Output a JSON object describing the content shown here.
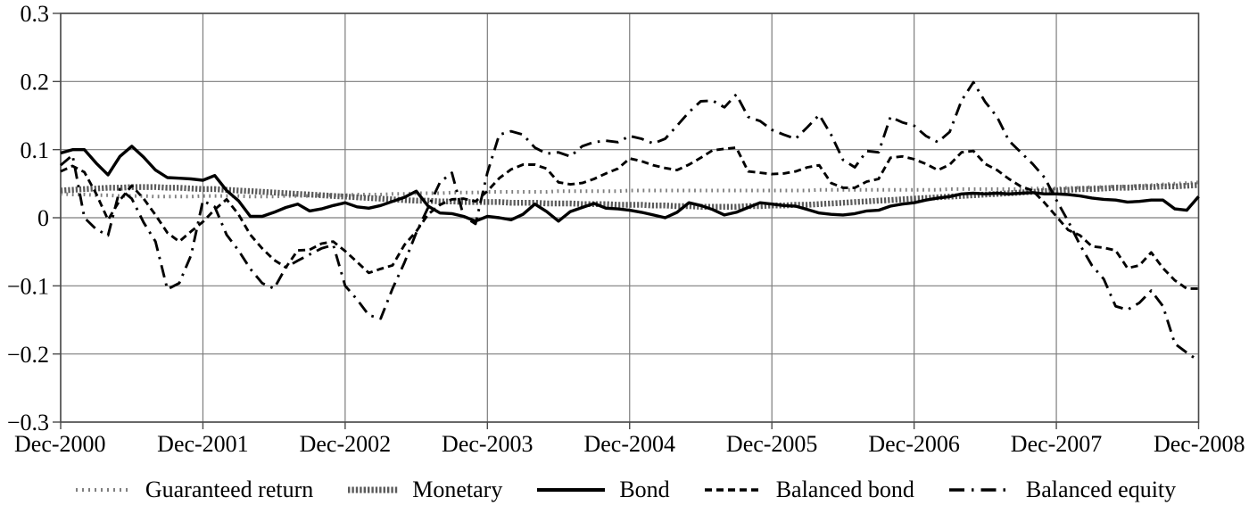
{
  "figure": {
    "background": "#ffffff",
    "text_color": "#000000",
    "gridline_color": "#7d7d7d"
  },
  "chart_data": {
    "type": "line",
    "title": "",
    "xlabel": "",
    "ylabel": "",
    "x_unit": "month",
    "x_range_labels": [
      "Dec-2000",
      "Dec-2008"
    ],
    "x_tick_labels": [
      "Dec-2000",
      "Dec-2001",
      "Dec-2002",
      "Dec-2003",
      "Dec-2004",
      "Dec-2005",
      "Dec-2006",
      "Dec-2007",
      "Dec-2008"
    ],
    "y_tick_labels": [
      "0.3",
      "0.2",
      "0.1",
      "0",
      "−0.1",
      "−0.2",
      "−0.3"
    ],
    "yticks": [
      0.3,
      0.2,
      0.1,
      0,
      -0.1,
      -0.2,
      -0.3
    ],
    "ylim": [
      -0.3,
      0.3
    ],
    "points_per_series": 97,
    "grid": "both",
    "legend_position": "bottom",
    "series": [
      {
        "id": "guaranteed",
        "name": "Guaranteed return",
        "color": "#7f7f7f",
        "style": "fine-dotted",
        "values": [
          0.035,
          0.034,
          0.034,
          0.033,
          0.033,
          0.032,
          0.032,
          0.032,
          0.031,
          0.031,
          0.031,
          0.031,
          0.032,
          0.032,
          0.032,
          0.032,
          0.031,
          0.031,
          0.031,
          0.032,
          0.032,
          0.032,
          0.033,
          0.033,
          0.033,
          0.034,
          0.034,
          0.034,
          0.035,
          0.035,
          0.036,
          0.036,
          0.036,
          0.037,
          0.037,
          0.037,
          0.038,
          0.038,
          0.038,
          0.038,
          0.038,
          0.038,
          0.039,
          0.039,
          0.039,
          0.039,
          0.039,
          0.039,
          0.04,
          0.04,
          0.04,
          0.04,
          0.04,
          0.04,
          0.04,
          0.04,
          0.04,
          0.04,
          0.04,
          0.04,
          0.04,
          0.04,
          0.04,
          0.04,
          0.041,
          0.041,
          0.041,
          0.041,
          0.041,
          0.041,
          0.041,
          0.041,
          0.041,
          0.041,
          0.041,
          0.042,
          0.042,
          0.042,
          0.042,
          0.042,
          0.042,
          0.042,
          0.043,
          0.043,
          0.043,
          0.044,
          0.044,
          0.045,
          0.045,
          0.046,
          0.046,
          0.047,
          0.048,
          0.049,
          0.05,
          0.051,
          0.052
        ]
      },
      {
        "id": "monetary",
        "name": "Monetary",
        "color": "#5a5a5a",
        "style": "dense-dotted",
        "values": [
          0.04,
          0.041,
          0.042,
          0.043,
          0.044,
          0.044,
          0.045,
          0.045,
          0.045,
          0.044,
          0.044,
          0.043,
          0.042,
          0.042,
          0.041,
          0.04,
          0.039,
          0.038,
          0.037,
          0.036,
          0.035,
          0.034,
          0.033,
          0.032,
          0.031,
          0.03,
          0.029,
          0.028,
          0.027,
          0.026,
          0.025,
          0.025,
          0.024,
          0.024,
          0.023,
          0.023,
          0.023,
          0.023,
          0.022,
          0.022,
          0.022,
          0.021,
          0.021,
          0.021,
          0.02,
          0.02,
          0.02,
          0.019,
          0.019,
          0.019,
          0.018,
          0.018,
          0.017,
          0.017,
          0.016,
          0.016,
          0.016,
          0.016,
          0.017,
          0.017,
          0.018,
          0.018,
          0.019,
          0.019,
          0.02,
          0.021,
          0.022,
          0.023,
          0.024,
          0.025,
          0.026,
          0.027,
          0.028,
          0.029,
          0.03,
          0.031,
          0.032,
          0.033,
          0.034,
          0.035,
          0.036,
          0.037,
          0.038,
          0.039,
          0.04,
          0.041,
          0.042,
          0.042,
          0.043,
          0.044,
          0.044,
          0.045,
          0.045,
          0.046,
          0.046,
          0.047,
          0.048
        ]
      },
      {
        "id": "bond",
        "name": "Bond",
        "color": "#000000",
        "style": "solid",
        "values": [
          0.095,
          0.1,
          0.1,
          0.08,
          0.063,
          0.09,
          0.105,
          0.089,
          0.07,
          0.059,
          0.058,
          0.057,
          0.055,
          0.062,
          0.04,
          0.025,
          0.002,
          0.002,
          0.008,
          0.015,
          0.02,
          0.01,
          0.013,
          0.018,
          0.022,
          0.016,
          0.014,
          0.018,
          0.024,
          0.03,
          0.039,
          0.017,
          0.007,
          0.006,
          0.002,
          -0.005,
          0.002,
          0.0,
          -0.003,
          0.005,
          0.02,
          0.009,
          -0.005,
          0.009,
          0.015,
          0.021,
          0.014,
          0.013,
          0.011,
          0.008,
          0.004,
          0.0,
          0.008,
          0.022,
          0.018,
          0.012,
          0.004,
          0.008,
          0.015,
          0.022,
          0.02,
          0.018,
          0.017,
          0.012,
          0.007,
          0.005,
          0.004,
          0.006,
          0.01,
          0.011,
          0.017,
          0.02,
          0.022,
          0.026,
          0.029,
          0.031,
          0.035,
          0.036,
          0.035,
          0.036,
          0.035,
          0.036,
          0.037,
          0.035,
          0.035,
          0.034,
          0.032,
          0.029,
          0.027,
          0.026,
          0.023,
          0.024,
          0.026,
          0.026,
          0.013,
          0.011,
          0.031
        ]
      },
      {
        "id": "balanced_bond",
        "name": "Balanced bond",
        "color": "#000000",
        "style": "dashed",
        "values": [
          0.068,
          0.076,
          0.067,
          0.035,
          -0.003,
          0.026,
          0.047,
          0.028,
          0.004,
          -0.022,
          -0.035,
          -0.02,
          -0.006,
          0.012,
          0.027,
          0.005,
          -0.025,
          -0.045,
          -0.062,
          -0.073,
          -0.048,
          -0.047,
          -0.038,
          -0.035,
          -0.049,
          -0.065,
          -0.081,
          -0.075,
          -0.07,
          -0.04,
          -0.02,
          0.005,
          0.019,
          0.027,
          0.028,
          0.024,
          0.039,
          0.058,
          0.071,
          0.078,
          0.078,
          0.072,
          0.052,
          0.049,
          0.051,
          0.057,
          0.065,
          0.072,
          0.087,
          0.083,
          0.077,
          0.073,
          0.07,
          0.078,
          0.088,
          0.099,
          0.101,
          0.103,
          0.068,
          0.066,
          0.064,
          0.065,
          0.068,
          0.074,
          0.077,
          0.051,
          0.044,
          0.044,
          0.053,
          0.057,
          0.088,
          0.09,
          0.086,
          0.079,
          0.07,
          0.078,
          0.096,
          0.098,
          0.079,
          0.07,
          0.057,
          0.046,
          0.04,
          0.022,
          0.002,
          -0.018,
          -0.026,
          -0.042,
          -0.044,
          -0.048,
          -0.074,
          -0.07,
          -0.051,
          -0.074,
          -0.092,
          -0.104,
          -0.104
        ]
      },
      {
        "id": "balanced_equity",
        "name": "Balanced equity",
        "color": "#000000",
        "style": "dash-dot",
        "values": [
          0.077,
          0.092,
          0.0,
          -0.017,
          -0.026,
          0.042,
          0.028,
          -0.007,
          -0.035,
          -0.105,
          -0.096,
          -0.055,
          0.025,
          0.016,
          -0.025,
          -0.048,
          -0.075,
          -0.096,
          -0.104,
          -0.073,
          -0.063,
          -0.054,
          -0.045,
          -0.04,
          -0.1,
          -0.12,
          -0.143,
          -0.148,
          -0.104,
          -0.066,
          -0.022,
          0.015,
          0.052,
          0.066,
          0.002,
          -0.009,
          0.066,
          0.122,
          0.127,
          0.122,
          0.103,
          0.094,
          0.096,
          0.09,
          0.105,
          0.111,
          0.113,
          0.111,
          0.12,
          0.116,
          0.109,
          0.116,
          0.135,
          0.155,
          0.171,
          0.172,
          0.162,
          0.181,
          0.148,
          0.142,
          0.129,
          0.122,
          0.116,
          0.133,
          0.151,
          0.122,
          0.085,
          0.074,
          0.098,
          0.096,
          0.148,
          0.14,
          0.135,
          0.12,
          0.111,
          0.126,
          0.172,
          0.199,
          0.17,
          0.148,
          0.113,
          0.096,
          0.079,
          0.059,
          0.026,
          -0.005,
          -0.04,
          -0.07,
          -0.09,
          -0.13,
          -0.135,
          -0.125,
          -0.107,
          -0.13,
          -0.185,
          -0.198,
          -0.21
        ]
      }
    ]
  }
}
